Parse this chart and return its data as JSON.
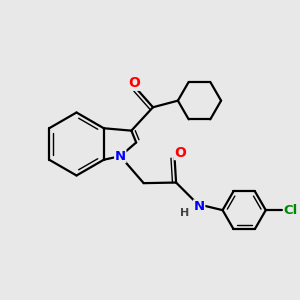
{
  "background_color": "#e8e8e8",
  "bond_color": "#000000",
  "atom_colors": {
    "O": "#ff0000",
    "N": "#0000ff",
    "Cl": "#008800",
    "H": "#444444"
  },
  "figsize": [
    3.0,
    3.0
  ],
  "dpi": 100
}
